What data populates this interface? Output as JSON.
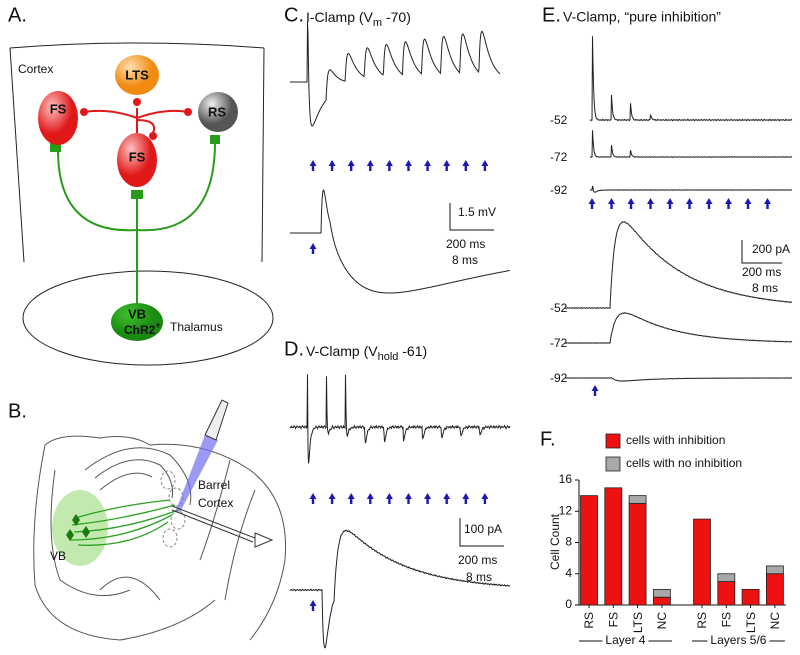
{
  "panels": {
    "a": {
      "label": "A.",
      "cortex": "Cortex",
      "thalamus": "Thalamus",
      "neurons": [
        "LTS",
        "FS",
        "RS",
        "FS"
      ],
      "vb": "VB",
      "chr2": "ChR2",
      "chr2_sup": "+"
    },
    "b": {
      "label": "B.",
      "barrel": [
        "Barrel",
        "Cortex"
      ],
      "vb": "VB"
    },
    "c": {
      "label": "C.",
      "title": [
        "I-Clamp (V",
        "m",
        " -70)"
      ],
      "scale": [
        "1.5 mV",
        "200 ms",
        "8 ms"
      ]
    },
    "d": {
      "label": "D.",
      "title": [
        "V-Clamp (V",
        "hold",
        " -61)"
      ],
      "scale": [
        "100 pA",
        "200 ms",
        "8 ms"
      ]
    },
    "e": {
      "label": "E.",
      "title": "V-Clamp, “pure inhibition”",
      "holding_top": [
        "-52",
        "-72",
        "-92"
      ],
      "scale": [
        "200 pA",
        "200 ms",
        "8 ms"
      ],
      "holding_bottom": [
        "-52",
        "-72",
        "-92"
      ]
    },
    "f": {
      "label": "F."
    }
  },
  "chart_data": {
    "type": "bar",
    "stacked": true,
    "ylabel": "Cell Count",
    "categories": [
      "RS",
      "FS",
      "LTS",
      "NC",
      "RS",
      "FS",
      "LTS",
      "NC"
    ],
    "groups": [
      "Layer 4",
      "Layers 5/6"
    ],
    "series": [
      {
        "name": "cells with inhibition",
        "color": "#ee1111",
        "values": [
          14,
          15,
          13,
          1,
          11,
          3,
          2,
          4
        ]
      },
      {
        "name": "cells with no inhibition",
        "color": "#a8a8a8",
        "values": [
          0,
          0,
          1,
          1,
          0,
          1,
          0,
          1
        ]
      }
    ],
    "ylim": [
      0,
      16
    ],
    "yticks": [
      0,
      4,
      8,
      12,
      16
    ],
    "legend": "top"
  }
}
